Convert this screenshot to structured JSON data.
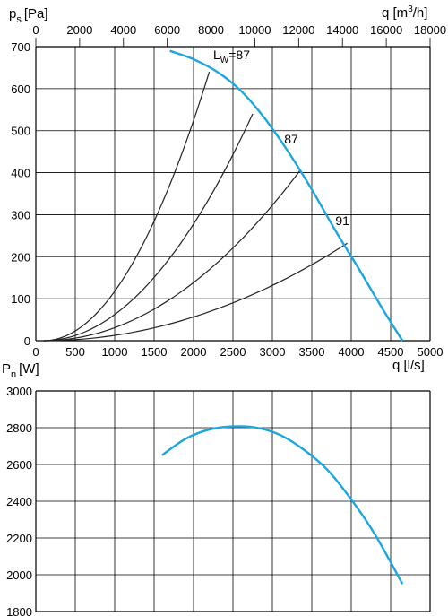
{
  "chart_data": [
    {
      "type": "line",
      "title": "",
      "ylabel_main": "p",
      "ylabel_sub": "s",
      "ylabel_unit": "[Pa]",
      "xlabel_top": "q [m³/h]",
      "xlabel_top_main": "q [m",
      "xlabel_top_sup": "3",
      "xlabel_top_end": "/h]",
      "xlabel_bottom": "q [l/s]",
      "xlim": [
        0,
        5000
      ],
      "ylim": [
        0,
        700
      ],
      "xticks": [
        "0",
        "500",
        "1000",
        "1500",
        "2000",
        "2500",
        "3000",
        "3500",
        "4000",
        "4500",
        "5000"
      ],
      "yticks": [
        "0",
        "100",
        "200",
        "300",
        "400",
        "500",
        "600",
        "700"
      ],
      "xticks_top_values": [
        0,
        2000,
        4000,
        6000,
        8000,
        10000,
        12000,
        14000,
        16000,
        18000
      ],
      "xticks_top": [
        "0",
        "2000",
        "4000",
        "6000",
        "8000",
        "10000",
        "12000",
        "14000",
        "16000",
        "18000"
      ],
      "grid": true,
      "fan_curve": {
        "color": "#1ba6df",
        "x": [
          1700,
          2000,
          2300,
          2600,
          2900,
          3200,
          3500,
          3800,
          4100,
          4400,
          4650
        ],
        "y": [
          690,
          670,
          640,
          595,
          530,
          450,
          360,
          262,
          170,
          75,
          0
        ]
      },
      "system_curves": [
        {
          "end_x": 2200,
          "end_y": 640
        },
        {
          "end_x": 2750,
          "end_y": 540
        },
        {
          "end_x": 3350,
          "end_y": 405
        },
        {
          "end_x": 3950,
          "end_y": 232
        }
      ],
      "system_curve_start_x": 100,
      "labels": [
        {
          "text_main": "L",
          "text_sub": "W",
          "text_end": "=87",
          "x": 2250,
          "y": 670
        },
        {
          "text": "87",
          "x": 3150,
          "y": 470
        },
        {
          "text": "91",
          "x": 3800,
          "y": 275
        }
      ]
    },
    {
      "type": "line",
      "title": "",
      "ylabel_main": "P",
      "ylabel_sub": "n",
      "ylabel_unit": "[W]",
      "xlim": [
        0,
        5000
      ],
      "ylim": [
        1800,
        3000
      ],
      "yticks": [
        "1800",
        "2000",
        "2200",
        "2400",
        "2600",
        "2800",
        "3000"
      ],
      "grid": true,
      "power_curve": {
        "color": "#1ba6df",
        "x": [
          1600,
          1900,
          2200,
          2500,
          2800,
          3100,
          3400,
          3700,
          4000,
          4300,
          4650
        ],
        "y": [
          2650,
          2740,
          2790,
          2807,
          2800,
          2760,
          2680,
          2570,
          2410,
          2220,
          1950
        ]
      }
    }
  ]
}
